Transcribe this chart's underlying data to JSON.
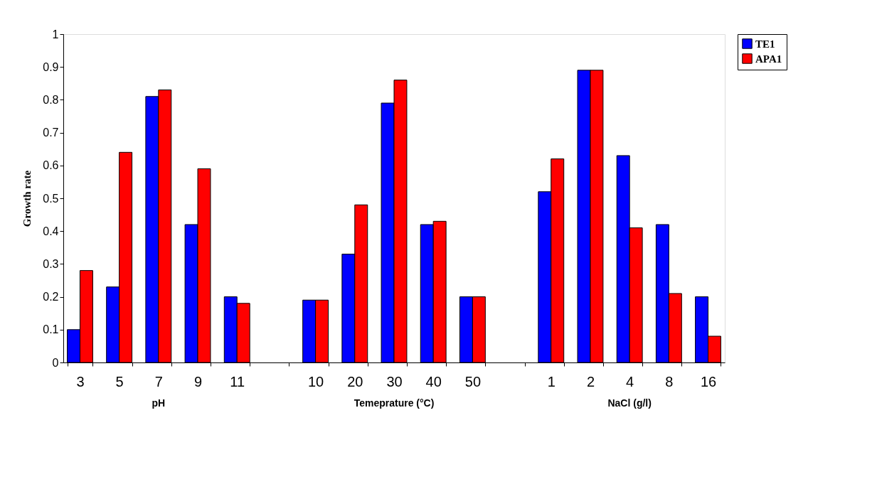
{
  "chart_data": {
    "type": "bar",
    "ylabel": "Growth rate",
    "categories": [
      "3",
      "5",
      "7",
      "9",
      "11",
      null,
      "10",
      "20",
      "30",
      "40",
      "50",
      null,
      "1",
      "2",
      "4",
      "8",
      "16"
    ],
    "series": [
      {
        "name": "TE1",
        "color": "#0000ff",
        "values": [
          0.1,
          0.23,
          0.81,
          0.42,
          0.2,
          null,
          0.19,
          0.33,
          0.79,
          0.42,
          0.2,
          null,
          0.52,
          0.89,
          0.63,
          0.42,
          0.2
        ]
      },
      {
        "name": "APA1",
        "color": "#ff0000",
        "values": [
          0.28,
          0.64,
          0.83,
          0.59,
          0.18,
          null,
          0.19,
          0.48,
          0.86,
          0.43,
          0.2,
          null,
          0.62,
          0.89,
          0.41,
          0.21,
          0.08
        ]
      }
    ],
    "ylim": [
      0,
      1
    ],
    "yticks": [
      0,
      0.1,
      0.2,
      0.3,
      0.4,
      0.5,
      0.6,
      0.7,
      0.8,
      0.9,
      1
    ],
    "grid": false,
    "legend": "right",
    "annotations": [
      "pH",
      "Temeprature (°C)",
      "NaCl (g/l)"
    ]
  }
}
